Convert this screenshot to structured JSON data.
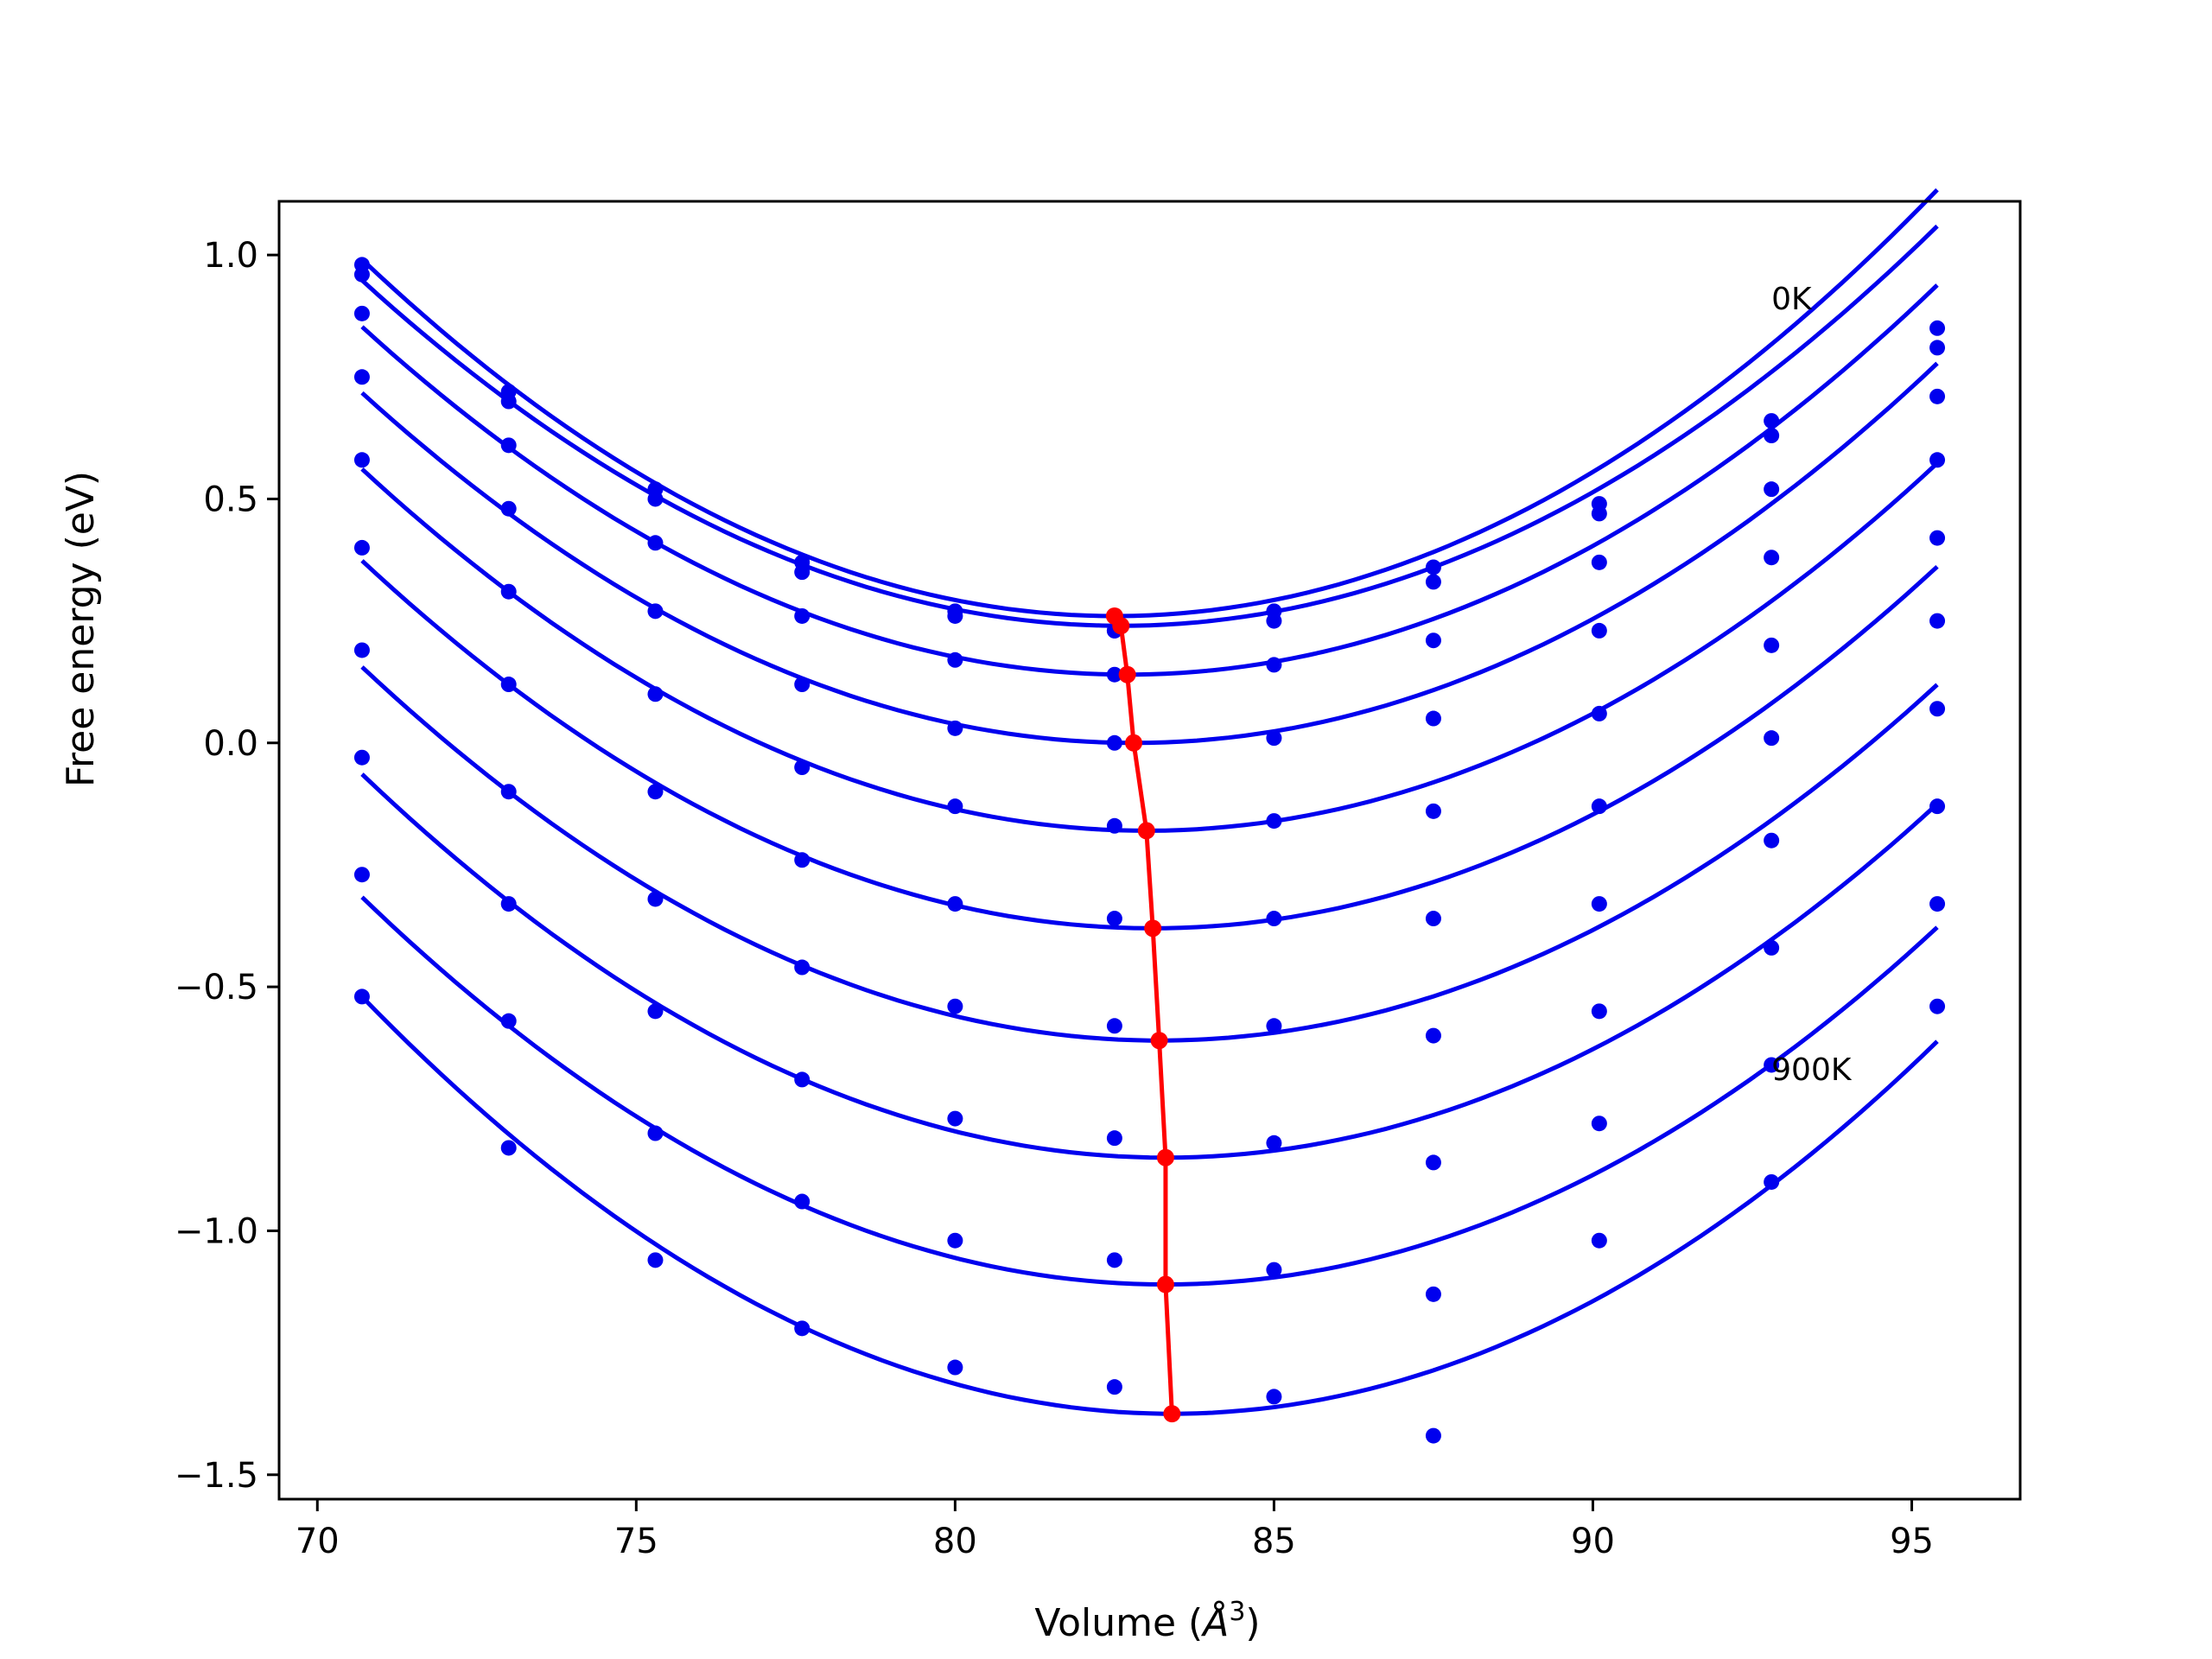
{
  "chart_data": {
    "type": "line",
    "xlabel_prefix": "Volume (",
    "xlabel_unit": "Å",
    "xlabel_exp": "3",
    "xlabel_suffix": ")",
    "ylabel": "Free energy (eV)",
    "xlim": [
      69.4,
      96.7
    ],
    "ylim": [
      -1.55,
      1.11
    ],
    "xticks": [
      70,
      75,
      80,
      85,
      90,
      95
    ],
    "yticks": [
      -1.5,
      -1.0,
      -0.5,
      0.0,
      0.5,
      1.0
    ],
    "xtick_labels": [
      "70",
      "75",
      "80",
      "85",
      "90",
      "95"
    ],
    "ytick_labels": [
      "−1.5",
      "−1.0",
      "−0.5",
      "0.0",
      "0.5",
      "1.0"
    ],
    "annotations": [
      {
        "text": "0K",
        "x": 92.8,
        "y": 0.91
      },
      {
        "text": "900K",
        "x": 92.8,
        "y": -0.67
      }
    ],
    "volumes": [
      70.7,
      73.0,
      75.3,
      77.6,
      80.0,
      82.5,
      85.0,
      87.5,
      90.1,
      92.8,
      95.4
    ],
    "fit_x_range": [
      70.7,
      95.4
    ],
    "series": [
      {
        "points": [
          0.98,
          0.72,
          0.52,
          0.37,
          0.27,
          0.23,
          0.27,
          0.36,
          0.49,
          0.66,
          0.85
        ],
        "fit": {
          "v0": 82.5,
          "e0": 0.26,
          "k": 0.00525
        }
      },
      {
        "points": [
          0.96,
          0.7,
          0.5,
          0.35,
          0.26,
          0.23,
          0.25,
          0.33,
          0.47,
          0.63,
          0.81
        ],
        "fit": {
          "v0": 82.6,
          "e0": 0.24,
          "k": 0.005
        }
      },
      {
        "points": [
          0.88,
          0.61,
          0.41,
          0.26,
          0.17,
          0.14,
          0.16,
          0.21,
          0.37,
          0.52,
          0.71
        ],
        "fit": {
          "v0": 82.7,
          "e0": 0.14,
          "k": 0.00495
        }
      },
      {
        "points": [
          0.75,
          0.48,
          0.27,
          0.12,
          0.03,
          0.0,
          0.01,
          0.05,
          0.23,
          0.38,
          0.58
        ],
        "fit": {
          "v0": 82.8,
          "e0": 0.0,
          "k": 0.0049
        }
      },
      {
        "points": [
          0.58,
          0.31,
          0.1,
          -0.05,
          -0.13,
          -0.17,
          -0.16,
          -0.14,
          0.06,
          0.2,
          0.42
        ],
        "fit": {
          "v0": 83.0,
          "e0": -0.18,
          "k": 0.0049
        }
      },
      {
        "points": [
          0.4,
          0.12,
          -0.1,
          -0.24,
          -0.33,
          -0.36,
          -0.36,
          -0.36,
          -0.13,
          0.01,
          0.25
        ],
        "fit": {
          "v0": 83.1,
          "e0": -0.38,
          "k": 0.0049
        }
      },
      {
        "points": [
          0.19,
          -0.1,
          -0.32,
          -0.46,
          -0.54,
          -0.58,
          -0.58,
          -0.6,
          -0.33,
          -0.2,
          0.07
        ],
        "fit": {
          "v0": 83.2,
          "e0": -0.61,
          "k": 0.0049
        }
      },
      {
        "points": [
          -0.03,
          -0.33,
          -0.55,
          -0.69,
          -0.77,
          -0.81,
          -0.82,
          -0.86,
          -0.55,
          -0.42,
          -0.13
        ],
        "fit": {
          "v0": 83.3,
          "e0": -0.85,
          "k": 0.00495
        }
      },
      {
        "points": [
          -0.27,
          -0.57,
          -0.8,
          -0.94,
          -1.02,
          -1.06,
          -1.08,
          -1.13,
          -0.78,
          -0.66,
          -0.33
        ],
        "fit": {
          "v0": 83.3,
          "e0": -1.11,
          "k": 0.005
        }
      },
      {
        "points": [
          -0.52,
          -0.83,
          -1.06,
          -1.2,
          -1.28,
          -1.32,
          -1.34,
          -1.42,
          -1.02,
          -0.9,
          -0.54
        ],
        "fit": {
          "v0": 83.4,
          "e0": -1.375,
          "k": 0.0053
        }
      }
    ],
    "minima_line": {
      "x": [
        82.5,
        82.6,
        82.7,
        82.8,
        83.0,
        83.1,
        83.2,
        83.3,
        83.3,
        83.4
      ],
      "y": [
        0.26,
        0.24,
        0.14,
        0.0,
        -0.18,
        -0.38,
        -0.61,
        -0.85,
        -1.11,
        -1.375
      ]
    },
    "colors": {
      "curves": "#0000ee",
      "minima": "#ff0000",
      "axes": "#000000"
    }
  }
}
